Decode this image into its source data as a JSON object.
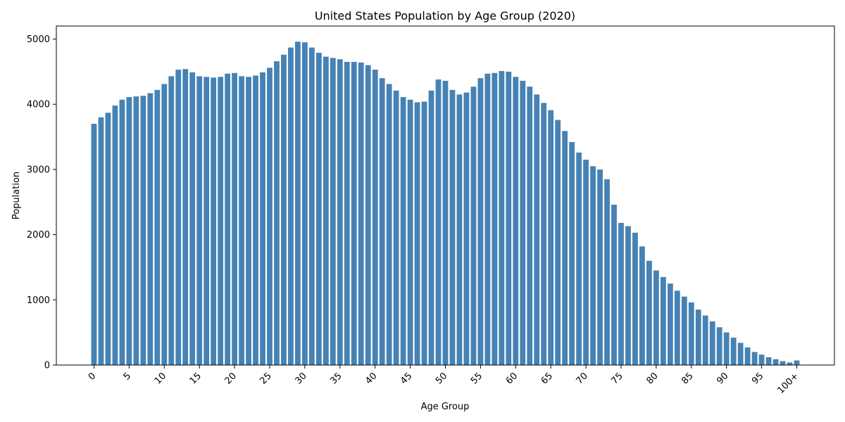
{
  "chart_data": {
    "type": "bar",
    "title": "United States Population by Age Group (2020)",
    "xlabel": "Age Group",
    "ylabel": "Population",
    "ylim": [
      0,
      5200
    ],
    "yticks": [
      0,
      1000,
      2000,
      3000,
      4000,
      5000
    ],
    "categories": [
      "0",
      "1",
      "2",
      "3",
      "4",
      "5",
      "6",
      "7",
      "8",
      "9",
      "10",
      "11",
      "12",
      "13",
      "14",
      "15",
      "16",
      "17",
      "18",
      "19",
      "20",
      "21",
      "22",
      "23",
      "24",
      "25",
      "26",
      "27",
      "28",
      "29",
      "30",
      "31",
      "32",
      "33",
      "34",
      "35",
      "36",
      "37",
      "38",
      "39",
      "40",
      "41",
      "42",
      "43",
      "44",
      "45",
      "46",
      "47",
      "48",
      "49",
      "50",
      "51",
      "52",
      "53",
      "54",
      "55",
      "56",
      "57",
      "58",
      "59",
      "60",
      "61",
      "62",
      "63",
      "64",
      "65",
      "66",
      "67",
      "68",
      "69",
      "70",
      "71",
      "72",
      "73",
      "74",
      "75",
      "76",
      "77",
      "78",
      "79",
      "80",
      "81",
      "82",
      "83",
      "84",
      "85",
      "86",
      "87",
      "88",
      "89",
      "90",
      "91",
      "92",
      "93",
      "94",
      "95",
      "96",
      "97",
      "98",
      "99",
      "100+"
    ],
    "xtick_labels": [
      "0",
      "5",
      "10",
      "15",
      "20",
      "25",
      "30",
      "35",
      "40",
      "45",
      "50",
      "55",
      "60",
      "65",
      "70",
      "75",
      "80",
      "85",
      "90",
      "95",
      "100+"
    ],
    "values": [
      3700,
      3800,
      3870,
      3980,
      4070,
      4110,
      4120,
      4130,
      4170,
      4220,
      4310,
      4430,
      4530,
      4540,
      4490,
      4430,
      4420,
      4410,
      4420,
      4470,
      4480,
      4430,
      4420,
      4440,
      4490,
      4560,
      4660,
      4760,
      4870,
      4960,
      4950,
      4870,
      4790,
      4730,
      4710,
      4690,
      4650,
      4650,
      4640,
      4600,
      4530,
      4400,
      4310,
      4210,
      4110,
      4070,
      4030,
      4040,
      4210,
      4380,
      4360,
      4220,
      4150,
      4180,
      4270,
      4400,
      4470,
      4480,
      4510,
      4500,
      4420,
      4360,
      4270,
      4150,
      4020,
      3910,
      3760,
      3590,
      3420,
      3260,
      3150,
      3050,
      3000,
      2850,
      2460,
      2180,
      2130,
      2030,
      1820,
      1600,
      1450,
      1350,
      1250,
      1140,
      1050,
      960,
      850,
      760,
      670,
      580,
      500,
      420,
      340,
      270,
      200,
      160,
      120,
      90,
      60,
      40,
      70
    ],
    "bar_color": "#4682b4",
    "grid": false,
    "legend": "none"
  }
}
